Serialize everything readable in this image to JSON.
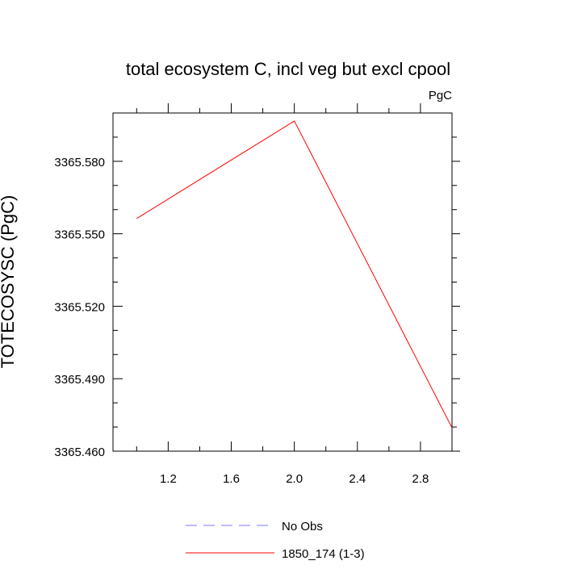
{
  "chart_data": {
    "type": "line",
    "title": "total ecosystem C, incl veg but excl cpool",
    "units_label": "PgC",
    "ylabel": "TOTECOSYSC  (PgC)",
    "xlabel": "",
    "xlim": [
      0.85,
      3.0
    ],
    "ylim": [
      3365.46,
      3365.6
    ],
    "x_major_ticks": [
      1.2,
      1.6,
      2.0,
      2.4,
      2.8
    ],
    "x_tick_labels": [
      "1.2",
      "1.6",
      "2.0",
      "2.4",
      "2.8"
    ],
    "x_minor_ticks": [
      1.0,
      1.4,
      1.8,
      2.2,
      2.6
    ],
    "y_major_ticks": [
      3365.46,
      3365.49,
      3365.52,
      3365.55,
      3365.58
    ],
    "y_tick_labels": [
      "3365.460",
      "3365.490",
      "3365.520",
      "3365.550",
      "3365.580"
    ],
    "y_minor_ticks": [
      3365.47,
      3365.48,
      3365.5,
      3365.51,
      3365.53,
      3365.54,
      3365.56,
      3365.57,
      3365.59
    ],
    "series": [
      {
        "name": "1850_174 (1-3)",
        "color": "#ff0000",
        "dash": "solid",
        "x": [
          1.0,
          2.0,
          3.0
        ],
        "y": [
          3365.5563,
          3365.5967,
          3365.4697
        ]
      }
    ],
    "legend": {
      "placement": "bottom",
      "entries": [
        {
          "label": "No Obs",
          "color": "#7b7bff",
          "dash": "dashed"
        },
        {
          "label": "1850_174 (1-3)",
          "color": "#ff0000",
          "dash": "solid"
        }
      ]
    },
    "grid": false
  }
}
